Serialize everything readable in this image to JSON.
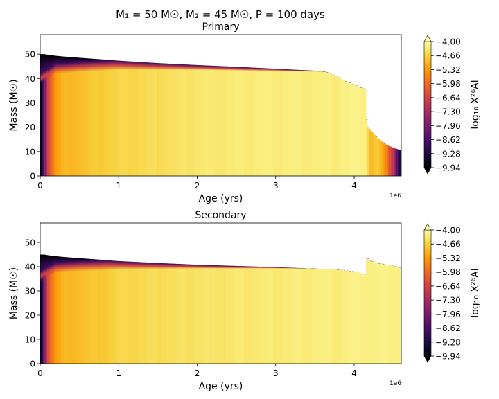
{
  "figure": {
    "suptitle": "M₁ = 50 M☉, M₂ = 45 M☉, P = 100 days"
  },
  "colormap": {
    "name": "inferno",
    "stops": [
      "#000004",
      "#1b0c41",
      "#4a0c6b",
      "#781c6d",
      "#a52c60",
      "#cf4446",
      "#ed6925",
      "#fb9b06",
      "#f7d13d",
      "#fcffa4"
    ],
    "empty_color": "#ffffff"
  },
  "chart_data": [
    {
      "type": "heatmap",
      "title": "Primary",
      "xlabel": "Age (yrs)",
      "ylabel": "Mass (M☉)",
      "xlim": [
        0,
        4.6
      ],
      "ylim": [
        0,
        58
      ],
      "x_multiplier": "1e6",
      "xticks": [
        0,
        1,
        2,
        3,
        4
      ],
      "yticks": [
        0,
        10,
        20,
        30,
        40,
        50
      ],
      "colorbar_label": "log₁₀ X²⁶Al",
      "colorbar_range": [
        -9.94,
        -4.0
      ],
      "colorbar_ticks": [
        -4.0,
        -4.66,
        -5.32,
        -5.98,
        -6.64,
        -7.3,
        -7.96,
        -8.62,
        -9.28,
        -9.94
      ],
      "colorbar_ticklabels": [
        "−4.00",
        "−4.66",
        "−5.32",
        "−5.98",
        "−6.64",
        "−7.30",
        "−7.96",
        "−8.62",
        "−9.28",
        "−9.94"
      ],
      "age_myr": [
        0,
        0.05,
        0.1,
        0.2,
        0.3,
        0.5,
        0.8,
        1.0,
        1.5,
        2.0,
        2.5,
        3.0,
        3.5,
        3.6,
        3.7,
        3.8,
        3.9,
        4.0,
        4.1,
        4.15,
        4.16,
        4.2,
        4.3,
        4.4,
        4.5,
        4.6
      ],
      "total_mass": [
        50,
        50,
        49.7,
        49.3,
        49,
        48.5,
        47.8,
        47.3,
        46.3,
        45.5,
        44.8,
        44,
        43.2,
        43,
        42.1,
        40.5,
        38.8,
        37.5,
        36.2,
        35.5,
        21,
        19,
        15.5,
        13,
        11.5,
        10.5
      ],
      "core_top_mass": [
        38,
        39,
        40,
        42,
        42.2,
        42.7,
        43.2,
        43.5,
        43.5,
        43.5,
        43.2,
        43,
        42.8,
        42.8,
        42.1,
        40.5,
        38.8,
        37.5,
        36.2,
        35.5,
        21,
        19,
        15.5,
        13,
        11.5,
        10.5
      ],
      "interior_log_abundance": [
        -9.9,
        -8.2,
        -6.5,
        -5.3,
        -5.0,
        -4.9,
        -4.7,
        -4.6,
        -4.5,
        -4.35,
        -4.3,
        -4.25,
        -4.25,
        -4.25,
        -4.25,
        -4.25,
        -4.2,
        -4.2,
        -4.2,
        -4.2,
        -4.2,
        -5.0,
        -4.7,
        -5.5,
        -7.0,
        -9.8
      ]
    },
    {
      "type": "heatmap",
      "title": "Secondary",
      "xlabel": "Age (yrs)",
      "ylabel": "Mass (M☉)",
      "xlim": [
        0,
        4.6
      ],
      "ylim": [
        0,
        58
      ],
      "x_multiplier": "1e6",
      "xticks": [
        0,
        1,
        2,
        3,
        4
      ],
      "yticks": [
        0,
        10,
        20,
        30,
        40,
        50
      ],
      "colorbar_label": "log₁₀ X²⁶Al",
      "colorbar_range": [
        -9.94,
        -4.0
      ],
      "colorbar_ticks": [
        -4.0,
        -4.66,
        -5.32,
        -5.98,
        -6.64,
        -7.3,
        -7.96,
        -8.62,
        -9.28,
        -9.94
      ],
      "colorbar_ticklabels": [
        "−4.00",
        "−4.66",
        "−5.32",
        "−5.98",
        "−6.64",
        "−7.30",
        "−7.96",
        "−8.62",
        "−9.28",
        "−9.94"
      ],
      "age_myr": [
        0,
        0.05,
        0.1,
        0.2,
        0.3,
        0.5,
        0.8,
        1.0,
        1.5,
        2.0,
        2.5,
        3.0,
        3.5,
        3.8,
        4.0,
        4.1,
        4.15,
        4.16,
        4.2,
        4.3,
        4.5,
        4.6
      ],
      "total_mass": [
        45,
        45,
        44.7,
        44.3,
        44,
        43.5,
        42.8,
        42.3,
        41.5,
        40.8,
        40.3,
        39.8,
        39.2,
        38.8,
        38,
        37.2,
        36.5,
        44,
        42.5,
        41.5,
        40.3,
        39.5
      ],
      "core_top_mass": [
        34,
        35,
        36,
        37.5,
        37.8,
        38.2,
        38.5,
        38.8,
        39,
        39.2,
        39.2,
        39.3,
        39.2,
        38.8,
        38,
        37.2,
        36.5,
        44,
        42.5,
        41.5,
        40.3,
        39.5
      ],
      "interior_log_abundance": [
        -9.9,
        -8.0,
        -6.3,
        -5.3,
        -5.0,
        -4.9,
        -4.75,
        -4.6,
        -4.5,
        -4.4,
        -4.35,
        -4.3,
        -4.25,
        -4.25,
        -4.2,
        -4.2,
        -4.2,
        -4.2,
        -4.2,
        -4.2,
        -4.2,
        -4.2
      ]
    }
  ]
}
